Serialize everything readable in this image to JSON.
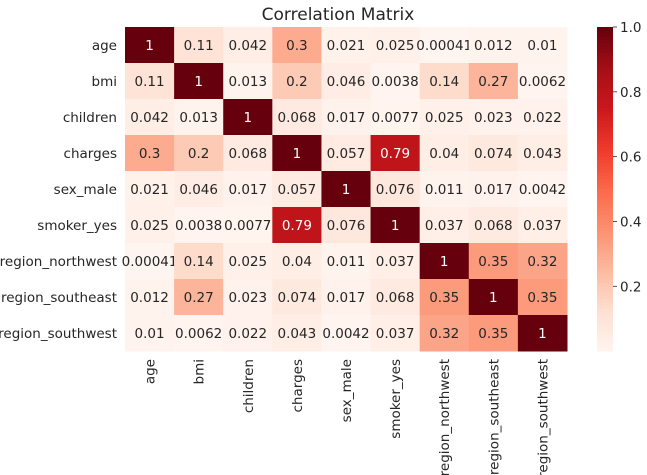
{
  "chart_data": {
    "type": "heatmap",
    "title": "Correlation Matrix",
    "rows": [
      "age",
      "bmi",
      "children",
      "charges",
      "sex_male",
      "smoker_yes",
      "region_northwest",
      "region_southeast",
      "region_southwest"
    ],
    "columns": [
      "age",
      "bmi",
      "children",
      "charges",
      "sex_male",
      "smoker_yes",
      "region_northwest",
      "region_southeast",
      "region_southwest"
    ],
    "values": [
      [
        1,
        0.11,
        0.042,
        0.3,
        0.021,
        0.025,
        0.00041,
        0.012,
        0.01
      ],
      [
        0.11,
        1,
        0.013,
        0.2,
        0.046,
        0.0038,
        0.14,
        0.27,
        0.0062
      ],
      [
        0.042,
        0.013,
        1,
        0.068,
        0.017,
        0.0077,
        0.025,
        0.023,
        0.022
      ],
      [
        0.3,
        0.2,
        0.068,
        1,
        0.057,
        0.79,
        0.04,
        0.074,
        0.043
      ],
      [
        0.021,
        0.046,
        0.017,
        0.057,
        1,
        0.076,
        0.011,
        0.017,
        0.0042
      ],
      [
        0.025,
        0.0038,
        0.0077,
        0.79,
        0.076,
        1,
        0.037,
        0.068,
        0.037
      ],
      [
        0.00041,
        0.14,
        0.025,
        0.04,
        0.011,
        0.037,
        1,
        0.35,
        0.32
      ],
      [
        0.012,
        0.27,
        0.023,
        0.074,
        0.017,
        0.068,
        0.35,
        1,
        0.35
      ],
      [
        0.01,
        0.0062,
        0.022,
        0.043,
        0.0042,
        0.037,
        0.32,
        0.35,
        1
      ]
    ],
    "cell_labels": [
      [
        "1",
        "0.11",
        "0.042",
        "0.3",
        "0.021",
        "0.025",
        "0.00041",
        "0.012",
        "0.01"
      ],
      [
        "0.11",
        "1",
        "0.013",
        "0.2",
        "0.046",
        "0.0038",
        "0.14",
        "0.27",
        "0.0062"
      ],
      [
        "0.042",
        "0.013",
        "1",
        "0.068",
        "0.017",
        "0.0077",
        "0.025",
        "0.023",
        "0.022"
      ],
      [
        "0.3",
        "0.2",
        "0.068",
        "1",
        "0.057",
        "0.79",
        "0.04",
        "0.074",
        "0.043"
      ],
      [
        "0.021",
        "0.046",
        "0.017",
        "0.057",
        "1",
        "0.076",
        "0.011",
        "0.017",
        "0.0042"
      ],
      [
        "0.025",
        "0.0038",
        "0.0077",
        "0.79",
        "0.076",
        "1",
        "0.037",
        "0.068",
        "0.037"
      ],
      [
        "0.00041",
        "0.14",
        "0.025",
        "0.04",
        "0.011",
        "0.037",
        "1",
        "0.35",
        "0.32"
      ],
      [
        "0.012",
        "0.27",
        "0.023",
        "0.074",
        "0.017",
        "0.068",
        "0.35",
        "1",
        "0.35"
      ],
      [
        "0.01",
        "0.0062",
        "0.022",
        "0.043",
        "0.0042",
        "0.037",
        "0.32",
        "0.35",
        "1"
      ]
    ],
    "colormap": "Reds",
    "colorbar": {
      "range": [
        0.00041,
        1
      ],
      "ticks": [
        0.2,
        0.4,
        0.6,
        0.8,
        1.0
      ],
      "tick_labels": [
        "0.2",
        "0.4",
        "0.6",
        "0.8",
        "1.0"
      ]
    }
  }
}
